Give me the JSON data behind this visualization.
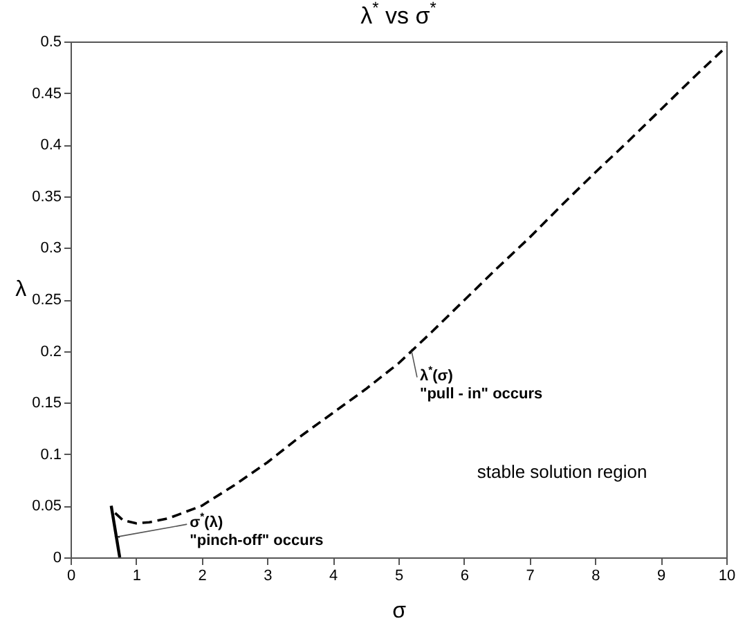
{
  "chart_data": {
    "type": "line",
    "title": "λ$^{*}$ vs σ$^{*}$",
    "xlabel": "σ",
    "ylabel": "λ",
    "xlim": [
      0,
      10
    ],
    "xticks": [
      0,
      1,
      2,
      3,
      4,
      5,
      6,
      7,
      8,
      9,
      10
    ],
    "ylim": [
      0,
      0.5
    ],
    "yticks": [
      0,
      0.05,
      0.1,
      0.15,
      0.2,
      0.25,
      0.3,
      0.35,
      0.4,
      0.45,
      0.5
    ],
    "grid": false,
    "marker": "none",
    "series": [
      {
        "color": "#000000",
        "line_style": "dashed",
        "x": [
          0.68,
          0.8,
          1.0,
          1.2,
          1.5,
          2,
          2.5,
          3,
          3.5,
          4,
          4.5,
          5,
          5.5,
          6,
          6.5,
          7,
          7.5,
          8,
          8.5,
          9,
          9.5,
          10
        ],
        "values": [
          0.043,
          0.036,
          0.033,
          0.034,
          0.038,
          0.05,
          0.07,
          0.092,
          0.117,
          0.14,
          0.163,
          0.188,
          0.218,
          0.249,
          0.28,
          0.31,
          0.342,
          0.373,
          0.403,
          0.434,
          0.465,
          0.495
        ]
      },
      {
        "color": "#000000",
        "line_style": "solid",
        "x": [
          0.62,
          0.75
        ],
        "values": [
          0.05,
          0
        ]
      }
    ],
    "annotations": [
      {
        "text": "σ$^{*}$(λ)\n\"pinch-off\" occurs",
        "x": 0.72,
        "y": 0.02
      },
      {
        "text": "λ$^{*}$(σ)\n\"pull - in\" occurs",
        "x": 5.2,
        "y": 0.2
      },
      "stable solution region"
    ]
  }
}
